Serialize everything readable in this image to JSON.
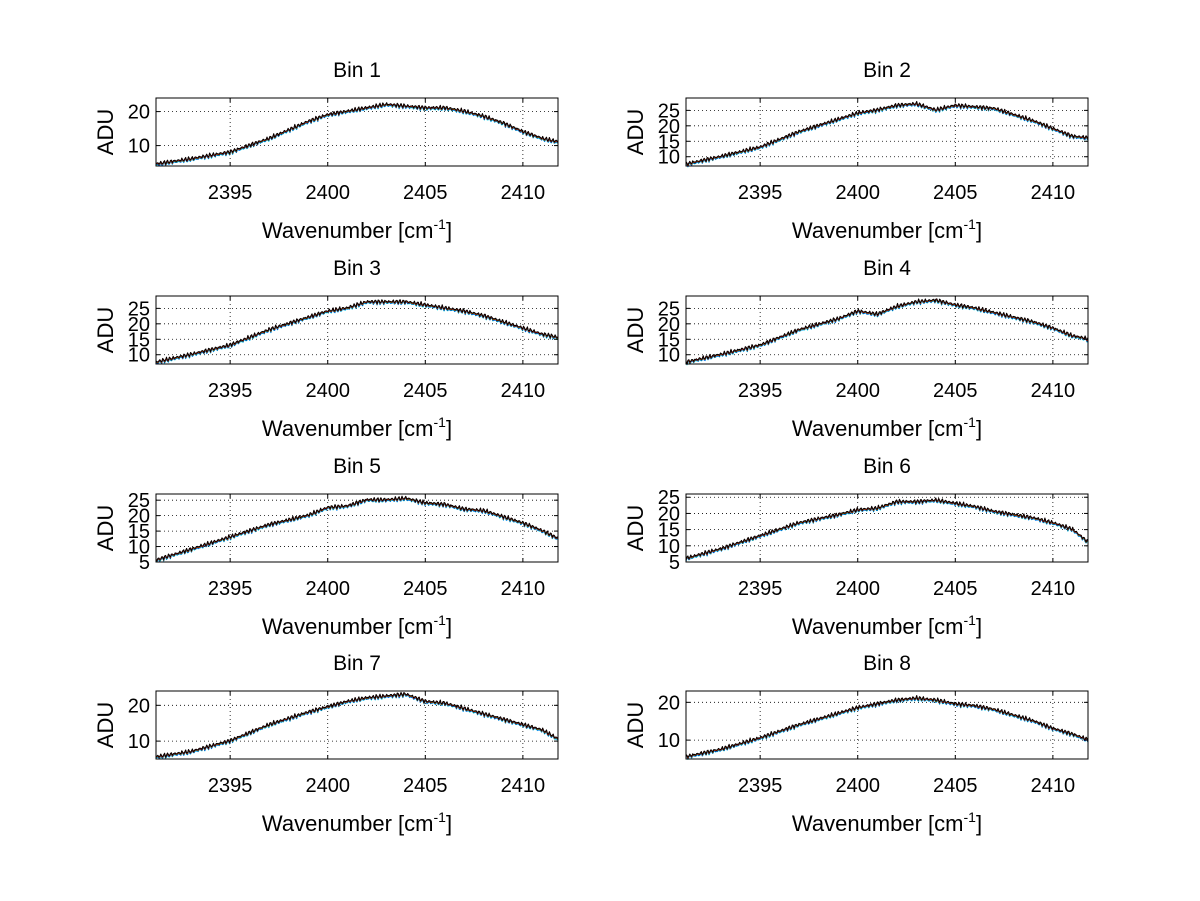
{
  "figure": {
    "background": "#ffffff"
  },
  "series_colors": [
    "#00e5e5",
    "#0000ff",
    "#00aa00",
    "#ff0000",
    "#000000"
  ],
  "chart_data": [
    {
      "type": "line",
      "title": "Bin 1",
      "xlabel_main": "Wavenumber [cm",
      "xlabel_sup": "-1",
      "xlabel_close": "]",
      "ylabel": "ADU",
      "xlim": [
        2391.2,
        2411.8
      ],
      "ylim": [
        4,
        24
      ],
      "xticks": [
        2395,
        2400,
        2405,
        2410
      ],
      "yticks": [
        10,
        20
      ],
      "grid": true,
      "profile": {
        "x": [
          2391.2,
          2393,
          2395,
          2397,
          2399,
          2400,
          2401,
          2402,
          2403,
          2404,
          2405,
          2406,
          2407,
          2408,
          2409,
          2410,
          2411,
          2411.8
        ],
        "y": [
          4.5,
          6,
          8,
          12,
          17,
          19,
          20,
          21,
          22,
          21.5,
          21,
          21,
          20,
          18.5,
          16.5,
          14,
          12,
          11
        ]
      }
    },
    {
      "type": "line",
      "title": "Bin 2",
      "xlabel_main": "Wavenumber [cm",
      "xlabel_sup": "-1",
      "xlabel_close": "]",
      "ylabel": "ADU",
      "xlim": [
        2391.2,
        2411.8
      ],
      "ylim": [
        7,
        29
      ],
      "xticks": [
        2395,
        2400,
        2405,
        2410
      ],
      "yticks": [
        10,
        15,
        20,
        25
      ],
      "grid": true,
      "profile": {
        "x": [
          2391.2,
          2393,
          2395,
          2397,
          2399,
          2400,
          2401,
          2402,
          2403,
          2404,
          2405,
          2406,
          2407,
          2408,
          2409,
          2410,
          2411,
          2411.8
        ],
        "y": [
          7.5,
          10,
          13,
          18,
          22,
          24,
          25,
          26.5,
          27,
          25,
          26.5,
          26,
          25.5,
          23.5,
          21.5,
          19,
          16.5,
          16
        ]
      }
    },
    {
      "type": "line",
      "title": "Bin 3",
      "xlabel_main": "Wavenumber [cm",
      "xlabel_sup": "-1",
      "xlabel_close": "]",
      "ylabel": "ADU",
      "xlim": [
        2391.2,
        2411.8
      ],
      "ylim": [
        7,
        29
      ],
      "xticks": [
        2395,
        2400,
        2405,
        2410
      ],
      "yticks": [
        10,
        15,
        20,
        25
      ],
      "grid": true,
      "profile": {
        "x": [
          2391.2,
          2393,
          2395,
          2397,
          2399,
          2400,
          2401,
          2402,
          2403,
          2404,
          2405,
          2406,
          2407,
          2408,
          2409,
          2410,
          2411,
          2411.8
        ],
        "y": [
          7.5,
          10,
          13,
          18,
          22,
          24,
          25,
          27,
          27,
          27,
          26,
          25,
          24,
          22.5,
          20.5,
          18.5,
          16.5,
          15.5
        ]
      }
    },
    {
      "type": "line",
      "title": "Bin 4",
      "xlabel_main": "Wavenumber [cm",
      "xlabel_sup": "-1",
      "xlabel_close": "]",
      "ylabel": "ADU",
      "xlim": [
        2391.2,
        2411.8
      ],
      "ylim": [
        7,
        29
      ],
      "xticks": [
        2395,
        2400,
        2405,
        2410
      ],
      "yticks": [
        10,
        15,
        20,
        25
      ],
      "grid": true,
      "profile": {
        "x": [
          2391.2,
          2393,
          2395,
          2397,
          2399,
          2400,
          2401,
          2402,
          2403,
          2404,
          2405,
          2406,
          2407,
          2408,
          2409,
          2410,
          2411,
          2411.8
        ],
        "y": [
          7.5,
          10,
          13,
          18,
          21.5,
          24,
          23,
          25.5,
          27,
          27.5,
          26,
          25,
          23.5,
          22,
          20.5,
          18.5,
          16,
          15
        ]
      }
    },
    {
      "type": "line",
      "title": "Bin 5",
      "xlabel_main": "Wavenumber [cm",
      "xlabel_sup": "-1",
      "xlabel_close": "]",
      "ylabel": "ADU",
      "xlim": [
        2391.2,
        2411.8
      ],
      "ylim": [
        5,
        27
      ],
      "xticks": [
        2395,
        2400,
        2405,
        2410
      ],
      "yticks": [
        5,
        10,
        15,
        20,
        25
      ],
      "grid": true,
      "profile": {
        "x": [
          2391.2,
          2393,
          2395,
          2397,
          2399,
          2400,
          2401,
          2402,
          2403,
          2404,
          2405,
          2406,
          2407,
          2408,
          2409,
          2410,
          2411,
          2411.8
        ],
        "y": [
          5.5,
          9,
          13,
          17,
          20,
          22.5,
          23,
          25,
          25,
          25.5,
          24,
          23.5,
          22,
          21.5,
          19.5,
          17.5,
          15,
          12.5
        ]
      }
    },
    {
      "type": "line",
      "title": "Bin 6",
      "xlabel_main": "Wavenumber [cm",
      "xlabel_sup": "-1",
      "xlabel_close": "]",
      "ylabel": "ADU",
      "xlim": [
        2391.2,
        2411.8
      ],
      "ylim": [
        5,
        26
      ],
      "xticks": [
        2395,
        2400,
        2405,
        2410
      ],
      "yticks": [
        5,
        10,
        15,
        20,
        25
      ],
      "grid": true,
      "profile": {
        "x": [
          2391.2,
          2393,
          2395,
          2397,
          2399,
          2400,
          2401,
          2402,
          2403,
          2404,
          2405,
          2406,
          2407,
          2408,
          2409,
          2410,
          2411,
          2411.8
        ],
        "y": [
          6,
          9,
          13,
          17,
          19.5,
          21,
          21.5,
          23.5,
          23.5,
          24,
          23,
          22,
          20.5,
          19.5,
          18.5,
          17,
          15,
          11
        ]
      }
    },
    {
      "type": "line",
      "title": "Bin 7",
      "xlabel_main": "Wavenumber [cm",
      "xlabel_sup": "-1",
      "xlabel_close": "]",
      "ylabel": "ADU",
      "xlim": [
        2391.2,
        2411.8
      ],
      "ylim": [
        5,
        24
      ],
      "xticks": [
        2395,
        2400,
        2405,
        2410
      ],
      "yticks": [
        10,
        20
      ],
      "grid": true,
      "profile": {
        "x": [
          2391.2,
          2393,
          2395,
          2397,
          2399,
          2400,
          2401,
          2402,
          2403,
          2404,
          2405,
          2406,
          2407,
          2408,
          2409,
          2410,
          2411,
          2411.8
        ],
        "y": [
          5.5,
          7,
          10,
          14.5,
          18,
          19.5,
          21,
          22,
          22.5,
          23,
          21,
          20.5,
          19,
          17.5,
          16,
          14.5,
          13,
          10.5
        ]
      }
    },
    {
      "type": "line",
      "title": "Bin 8",
      "xlabel_main": "Wavenumber [cm",
      "xlabel_sup": "-1",
      "xlabel_close": "]",
      "ylabel": "ADU",
      "xlim": [
        2391.2,
        2411.8
      ],
      "ylim": [
        5,
        23
      ],
      "xticks": [
        2395,
        2400,
        2405,
        2410
      ],
      "yticks": [
        10,
        20
      ],
      "grid": true,
      "profile": {
        "x": [
          2391.2,
          2393,
          2395,
          2397,
          2399,
          2400,
          2401,
          2402,
          2403,
          2404,
          2405,
          2406,
          2407,
          2408,
          2409,
          2410,
          2411,
          2411.8
        ],
        "y": [
          5.5,
          7.5,
          10.5,
          14,
          17,
          18.5,
          19.5,
          20.5,
          21,
          20.5,
          19.5,
          19,
          18,
          16.5,
          15,
          13,
          11.5,
          10
        ]
      }
    }
  ]
}
